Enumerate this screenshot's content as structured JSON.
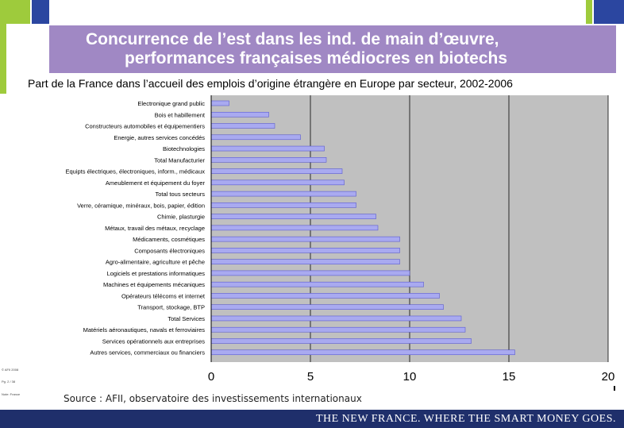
{
  "slide": {
    "title_line1": "Concurrence de l’est dans les ind. de main d’œuvre,",
    "title_line2": "performances françaises médiocres en biotechs",
    "subtitle": "Part de la France dans l’accueil des emplois d’origine étrangère en Europe par secteur, 2002-2006",
    "source": "Source : AFII, observatoire des investissements internationaux",
    "footer": "THE NEW FRANCE. WHERE THE SMART MONEY GOES.",
    "colors": {
      "title_band": "#a088c4",
      "accent_green": "#9ecb3c",
      "navy": "#1f3a8a",
      "footer": "#1f2f6b",
      "plot_bg": "#c0c0c0",
      "bar": "#a9aaf0"
    }
  },
  "chart_data": {
    "type": "bar",
    "orientation": "horizontal",
    "title": "",
    "xlabel": "",
    "ylabel": "",
    "xlim": [
      0,
      20
    ],
    "x_ticks": [
      0,
      5,
      10,
      15,
      20
    ],
    "grid": true,
    "categories": [
      "Electronique grand public",
      "Bois et habillement",
      "Constructeurs automobiles et équipementiers",
      "Energie, autres services concédés",
      "Biotechnologies",
      "Total Manufacturier",
      "Equipts électriques, électroniques, inform., médicaux",
      "Ameublement et équipement du foyer",
      "Total tous secteurs",
      "Verre, céramique, minéraux, bois, papier, édition",
      "Chimie, plasturgie",
      "Métaux, travail des métaux, recyclage",
      "Médicaments, cosmétiques",
      "Composants électroniques",
      "Agro-alimentaire, agriculture et pêche",
      "Logiciels et prestations informatiques",
      "Machines et équipements mécaniques",
      "Opérateurs télécoms et internet",
      "Transport, stockage, BTP",
      "Total Services",
      "Matériels aéronautiques, navals et ferroviaires",
      "Services opérationnels aux entreprises",
      "Autres services, commerciaux ou financiers"
    ],
    "values": [
      0.9,
      2.9,
      3.2,
      4.5,
      5.7,
      5.8,
      6.6,
      6.7,
      7.3,
      7.3,
      8.3,
      8.4,
      9.5,
      9.5,
      9.5,
      10.0,
      10.7,
      11.5,
      11.7,
      12.6,
      12.8,
      13.1,
      15.3
    ]
  },
  "side_notes": [
    "© AFII 2008",
    "Pg. 2 / 38",
    "Note: France"
  ]
}
